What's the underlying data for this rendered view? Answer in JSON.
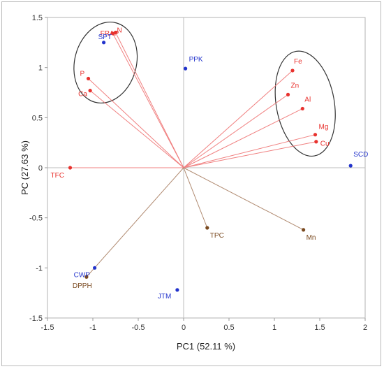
{
  "chart_data": {
    "type": "scatter",
    "subtype": "pca-biplot",
    "title": "",
    "xlabel": "PC1 (52.11 %)",
    "ylabel": "PC (27.63 %)",
    "xlim": [
      -1.5,
      2
    ],
    "ylim": [
      -1.5,
      1.5
    ],
    "x_ticks": [
      -1.5,
      -1,
      -0.5,
      0,
      0.5,
      1,
      1.5,
      2
    ],
    "x_tick_labels": [
      "-1.5",
      "-1",
      "-0.5",
      "0",
      "0.5",
      "1",
      "1.5",
      "2"
    ],
    "y_ticks": [
      -1.5,
      -1,
      -0.5,
      0,
      0.5,
      1,
      1.5
    ],
    "y_tick_labels": [
      "-1.5",
      "-1",
      "-0.5",
      "0",
      "0.5",
      "1",
      "1.5"
    ],
    "grid": false,
    "colors": {
      "variable": "#e8322e",
      "brown_variable": "#7a4a20",
      "sample": "#2233cc",
      "vector": "#f08080",
      "brown_vector": "#b08a70",
      "ellipse": "#333333"
    },
    "variables": [
      {
        "label": "FRAP",
        "x": -0.78,
        "y": 1.34,
        "color": "#e8322e"
      },
      {
        "label": "N",
        "x": -0.75,
        "y": 1.35,
        "color": "#e8322e"
      },
      {
        "label": "P",
        "x": -1.05,
        "y": 0.89,
        "color": "#e8322e"
      },
      {
        "label": "Ca",
        "x": -1.03,
        "y": 0.77,
        "color": "#e8322e"
      },
      {
        "label": "TFC",
        "x": -1.25,
        "y": 0.0,
        "color": "#e8322e"
      },
      {
        "label": "Fe",
        "x": 1.2,
        "y": 0.97,
        "color": "#e8322e"
      },
      {
        "label": "Zn",
        "x": 1.15,
        "y": 0.73,
        "color": "#e8322e"
      },
      {
        "label": "Al",
        "x": 1.31,
        "y": 0.59,
        "color": "#e8322e"
      },
      {
        "label": "Mg",
        "x": 1.45,
        "y": 0.33,
        "color": "#e8322e"
      },
      {
        "label": "Cu",
        "x": 1.46,
        "y": 0.26,
        "color": "#e8322e"
      },
      {
        "label": "TPC",
        "x": 0.26,
        "y": -0.6,
        "color": "#7a4a20"
      },
      {
        "label": "Mn",
        "x": 1.32,
        "y": -0.62,
        "color": "#7a4a20"
      },
      {
        "label": "DPPH",
        "x": -1.07,
        "y": -1.09,
        "color": "#7a4a20"
      }
    ],
    "samples": [
      {
        "label": "SPT",
        "x": -0.88,
        "y": 1.25
      },
      {
        "label": "PPK",
        "x": 0.02,
        "y": 0.99
      },
      {
        "label": "SCD",
        "x": 1.84,
        "y": 0.02
      },
      {
        "label": "CWP",
        "x": -0.98,
        "y": -1.0
      },
      {
        "label": "JTM",
        "x": -0.07,
        "y": -1.22
      }
    ],
    "ellipses": [
      {
        "cx": -0.86,
        "cy": 1.05,
        "rx": 0.34,
        "ry": 0.41,
        "rotation": 15
      },
      {
        "cx": 1.34,
        "cy": 0.64,
        "rx": 0.32,
        "ry": 0.53,
        "rotation": -10
      }
    ]
  }
}
